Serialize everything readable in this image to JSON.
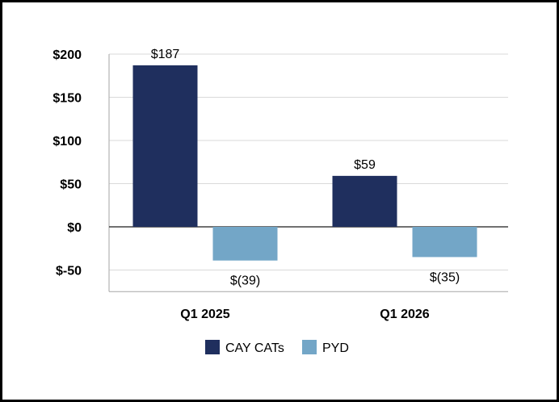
{
  "chart_data": {
    "type": "bar",
    "categories": [
      "Q1 2025",
      "Q1 2026"
    ],
    "series": [
      {
        "name": "CAY CATs",
        "values": [
          187,
          59
        ],
        "labels": [
          "$187",
          "$59"
        ],
        "color": "#1f2f5e"
      },
      {
        "name": "PYD",
        "values": [
          -39,
          -35
        ],
        "labels": [
          "$(39)",
          "$(35)"
        ],
        "color": "#73a6c7"
      }
    ],
    "yticks": [
      200,
      150,
      100,
      50,
      0,
      -50
    ],
    "ytick_labels": [
      "$200",
      "$150",
      "$100",
      "$50",
      "$0",
      "$-50"
    ],
    "ylim": [
      -75,
      200
    ],
    "grid": true,
    "legend_position": "bottom",
    "title": "",
    "xlabel": "",
    "ylabel": ""
  }
}
